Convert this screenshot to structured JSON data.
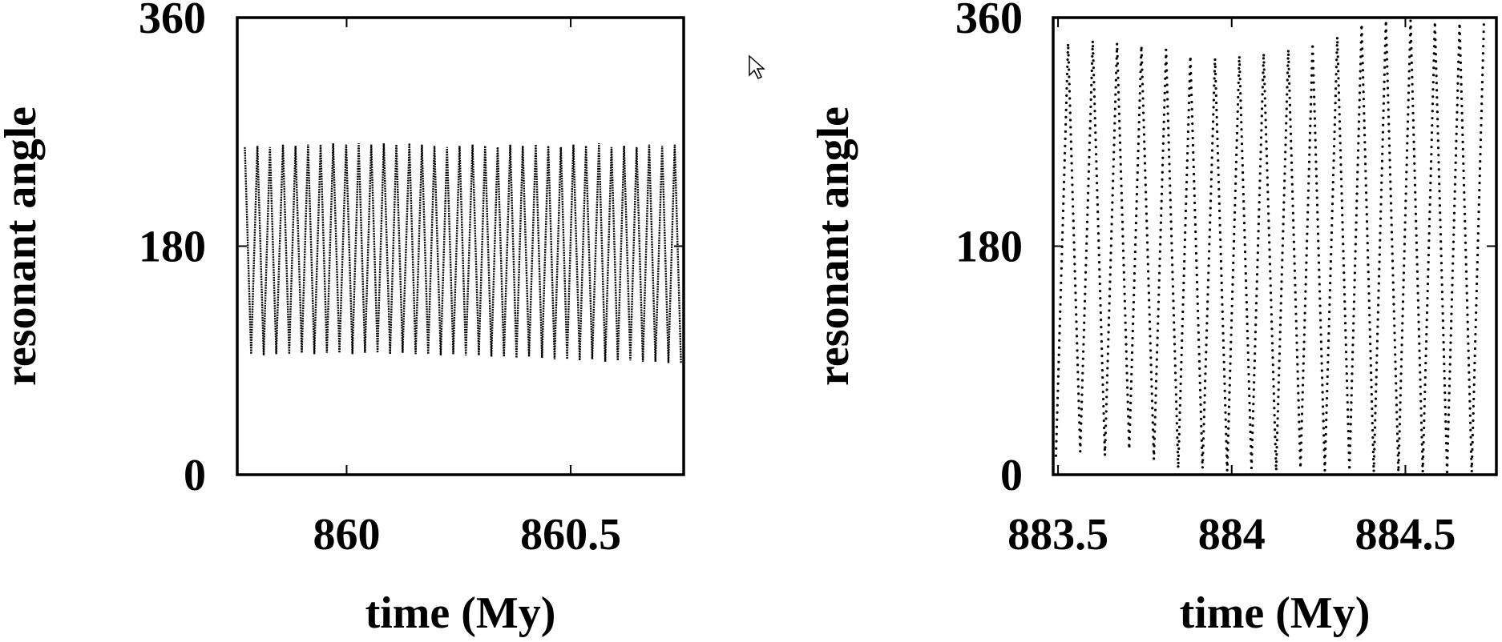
{
  "chart_data": [
    {
      "type": "line",
      "xlabel": "time (My)",
      "ylabel": "resonant angle",
      "color": "#000000",
      "linestyle": "solid",
      "xlim": [
        859.756,
        860.752
      ],
      "ylim": [
        0,
        360
      ],
      "xticks": [
        860,
        860.5
      ],
      "yticks": [
        0,
        180,
        360
      ],
      "x": [
        859.773,
        859.787,
        859.801,
        859.815,
        859.829,
        859.843,
        859.858,
        859.872,
        859.886,
        859.9,
        859.914,
        859.928,
        859.942,
        859.956,
        859.97,
        859.984,
        859.999,
        860.013,
        860.027,
        860.041,
        860.055,
        860.069,
        860.083,
        860.097,
        860.111,
        860.125,
        860.14,
        860.154,
        860.168,
        860.182,
        860.196,
        860.21,
        860.224,
        860.238,
        860.252,
        860.266,
        860.281,
        860.295,
        860.309,
        860.323,
        860.337,
        860.351,
        860.365,
        860.379,
        860.393,
        860.407,
        860.422,
        860.436,
        860.45,
        860.464,
        860.478,
        860.492,
        860.506,
        860.52,
        860.534,
        860.548,
        860.563,
        860.577,
        860.591,
        860.605,
        860.619,
        860.633,
        860.647,
        860.661,
        860.675,
        860.689,
        860.704,
        860.718,
        860.732,
        860.746
      ],
      "values": [
        258,
        95,
        259,
        94,
        258,
        95,
        260,
        95,
        259,
        96,
        260,
        95,
        260,
        96,
        261,
        96,
        260,
        95,
        261,
        96,
        260,
        96,
        261,
        95,
        260,
        96,
        261,
        95,
        260,
        95,
        259,
        94,
        258,
        95,
        259,
        94,
        260,
        94,
        259,
        93,
        258,
        93,
        260,
        92,
        259,
        93,
        260,
        92,
        259,
        91,
        258,
        91,
        260,
        90,
        259,
        91,
        261,
        89,
        258,
        90,
        259,
        90,
        258,
        89,
        260,
        89,
        259,
        88,
        260,
        88
      ]
    },
    {
      "type": "line",
      "xlabel": "time (My)",
      "ylabel": "resonant angle",
      "color": "#000000",
      "linestyle": "dotted",
      "xlim": [
        883.486,
        884.762
      ],
      "ylim": [
        0,
        360
      ],
      "xticks": [
        883.5,
        884,
        884.5
      ],
      "yticks": [
        0,
        180,
        360
      ],
      "x": [
        883.494,
        883.529,
        883.564,
        883.6,
        883.635,
        883.67,
        883.705,
        883.74,
        883.776,
        883.811,
        883.846,
        883.881,
        883.916,
        883.952,
        883.987,
        884.022,
        884.057,
        884.092,
        884.128,
        884.163,
        884.198,
        884.233,
        884.268,
        884.304,
        884.339,
        884.374,
        884.409,
        884.444,
        884.48,
        884.515,
        884.55,
        884.585,
        884.62,
        884.656,
        884.691,
        884.726
      ],
      "values": [
        15,
        340,
        18,
        342,
        15,
        340,
        20,
        338,
        12,
        335,
        5,
        330,
        5,
        328,
        3,
        330,
        5,
        332,
        3,
        335,
        5,
        340,
        3,
        345,
        3,
        355,
        2,
        358,
        2,
        358,
        2,
        357,
        2,
        356,
        2,
        355
      ]
    }
  ]
}
